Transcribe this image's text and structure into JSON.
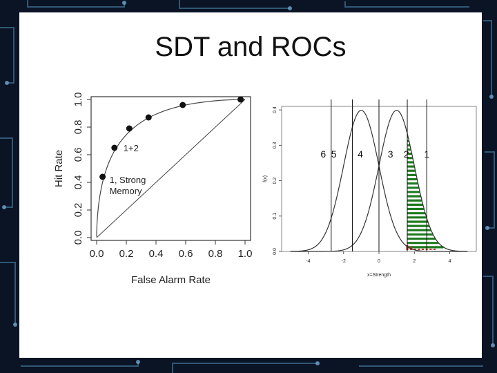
{
  "slide": {
    "title": "SDT and ROCs"
  },
  "chart_data": [
    {
      "type": "line",
      "xlabel": "False Alarm Rate",
      "ylabel": "Hit Rate",
      "xlim": [
        0,
        1
      ],
      "ylim": [
        0,
        1
      ],
      "x_ticks": [
        "0.0",
        "0.2",
        "0.4",
        "0.6",
        "0.8",
        "1.0"
      ],
      "y_ticks": [
        "0.0",
        "0.2",
        "0.4",
        "0.6",
        "0.8",
        "1.0"
      ],
      "points": [
        {
          "x": 0.04,
          "y": 0.44
        },
        {
          "x": 0.12,
          "y": 0.65
        },
        {
          "x": 0.22,
          "y": 0.79
        },
        {
          "x": 0.35,
          "y": 0.87
        },
        {
          "x": 0.58,
          "y": 0.96
        },
        {
          "x": 0.97,
          "y": 1.0
        }
      ],
      "annotations": [
        {
          "text": "1+2",
          "x": 0.12,
          "y": 0.65
        },
        {
          "text": "1, Strong",
          "x": 0.04,
          "y": 0.44
        },
        {
          "text": "Memory",
          "x": 0.04,
          "y": 0.44
        }
      ],
      "chance_line": true,
      "curve": true
    },
    {
      "type": "line",
      "xlabel": "x=Strength",
      "ylabel": "f(x)",
      "xlim": [
        -5.5,
        5.5
      ],
      "ylim": [
        0,
        0.41
      ],
      "x_ticks": [
        "-4",
        "-2",
        "0",
        "2",
        "4"
      ],
      "y_ticks": [
        "0.0",
        "0.1",
        "0.2",
        "0.3",
        "0.4"
      ],
      "distributions": [
        {
          "mean": -1,
          "sd": 1
        },
        {
          "mean": 1,
          "sd": 1
        }
      ],
      "criteria": [
        {
          "label": "6",
          "x": -2.7
        },
        {
          "label": "5",
          "x": -1.5
        },
        {
          "label": "4",
          "x": 0.0
        },
        {
          "label": "3",
          "x": 1.6
        },
        {
          "label": "2",
          "x": 1.8
        },
        {
          "label": "1",
          "x": 2.7
        }
      ],
      "shaded_from": 1.6,
      "colors": {
        "hits": "#1e7a1e",
        "false_alarms": "#d0201a",
        "lines": "#333333"
      }
    }
  ]
}
